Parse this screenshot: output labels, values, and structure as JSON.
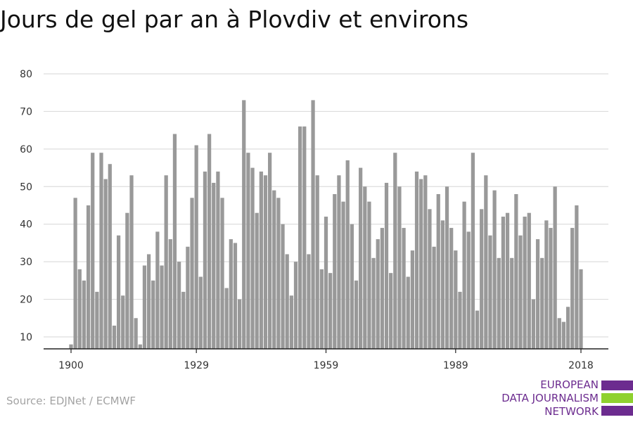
{
  "chart_data": {
    "type": "bar",
    "title": "Jours de gel par an à Plovdiv et environs",
    "xlabel": "",
    "ylabel": "",
    "x_range": [
      1900,
      2018
    ],
    "ylim": [
      7,
      80
    ],
    "y_ticks": [
      10,
      20,
      30,
      40,
      50,
      60,
      70,
      80
    ],
    "x_ticks": [
      1900,
      1929,
      1959,
      1989,
      2018
    ],
    "grid": true,
    "bar_color": "#999999",
    "years": [
      1900,
      1901,
      1902,
      1903,
      1904,
      1905,
      1906,
      1907,
      1908,
      1909,
      1910,
      1911,
      1912,
      1913,
      1914,
      1915,
      1916,
      1917,
      1918,
      1919,
      1920,
      1921,
      1922,
      1923,
      1924,
      1925,
      1926,
      1927,
      1928,
      1929,
      1930,
      1931,
      1932,
      1933,
      1934,
      1935,
      1936,
      1937,
      1938,
      1939,
      1940,
      1941,
      1942,
      1943,
      1944,
      1945,
      1946,
      1947,
      1948,
      1949,
      1950,
      1951,
      1952,
      1953,
      1954,
      1955,
      1956,
      1957,
      1958,
      1959,
      1960,
      1961,
      1962,
      1963,
      1964,
      1965,
      1966,
      1967,
      1968,
      1969,
      1970,
      1971,
      1972,
      1973,
      1974,
      1975,
      1976,
      1977,
      1978,
      1979,
      1980,
      1981,
      1982,
      1983,
      1984,
      1985,
      1986,
      1987,
      1988,
      1989,
      1990,
      1991,
      1992,
      1993,
      1994,
      1995,
      1996,
      1997,
      1998,
      1999,
      2000,
      2001,
      2002,
      2003,
      2004,
      2005,
      2006,
      2007,
      2008,
      2009,
      2010,
      2011,
      2012,
      2013,
      2014,
      2015,
      2016,
      2017,
      2018
    ],
    "values": [
      8,
      47,
      28,
      25,
      45,
      59,
      22,
      59,
      52,
      56,
      13,
      37,
      21,
      43,
      53,
      15,
      8,
      29,
      32,
      25,
      38,
      29,
      53,
      36,
      64,
      30,
      22,
      34,
      47,
      61,
      26,
      54,
      64,
      51,
      54,
      47,
      23,
      36,
      35,
      20,
      73,
      59,
      55,
      43,
      54,
      53,
      59,
      49,
      47,
      40,
      32,
      21,
      30,
      66,
      66,
      32,
      73,
      53,
      28,
      42,
      27,
      48,
      53,
      46,
      57,
      40,
      25,
      55,
      50,
      46,
      31,
      36,
      39,
      51,
      27,
      59,
      50,
      39,
      26,
      33,
      54,
      52,
      53,
      44,
      34,
      48,
      41,
      50,
      39,
      33,
      22,
      46,
      38,
      59,
      17,
      44,
      53,
      37,
      49,
      31,
      42,
      43,
      31,
      48,
      37,
      42,
      43,
      20,
      36,
      31,
      41,
      39,
      50,
      15,
      14,
      18,
      39,
      45,
      28
    ]
  },
  "source": "Source: EDJNet / ECMWF",
  "logo": {
    "lines": [
      "EUROPEAN",
      "DATA JOURNALISM",
      "NETWORK"
    ],
    "colors": {
      "purple": "#6c2c8f",
      "green": "#8fd12f"
    }
  }
}
